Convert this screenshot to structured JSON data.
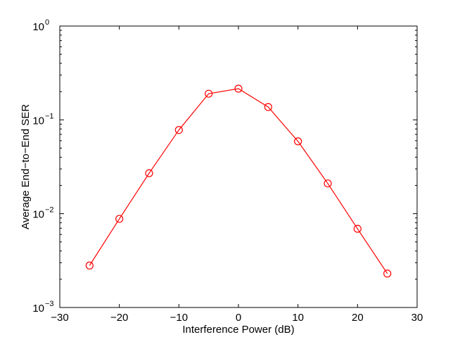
{
  "chart_data": {
    "type": "line",
    "title": "",
    "xlabel": "Interference Power (dB)",
    "ylabel": "Average End−to−End SER",
    "xlim": [
      -30,
      30
    ],
    "ylim": [
      0.001,
      1
    ],
    "yscale": "log",
    "grid": false,
    "legend": "none",
    "x_ticks": [
      {
        "value": -30,
        "label": "−30"
      },
      {
        "value": -20,
        "label": "−20"
      },
      {
        "value": -10,
        "label": "−10"
      },
      {
        "value": 0,
        "label": "0"
      },
      {
        "value": 10,
        "label": "10"
      },
      {
        "value": 20,
        "label": "20"
      },
      {
        "value": 30,
        "label": "30"
      }
    ],
    "y_ticks": [
      {
        "value": 0.001,
        "base": "10",
        "exp": "−3"
      },
      {
        "value": 0.01,
        "base": "10",
        "exp": "−2"
      },
      {
        "value": 0.1,
        "base": "10",
        "exp": "−1"
      },
      {
        "value": 1,
        "base": "10",
        "exp": "0"
      }
    ],
    "series": [
      {
        "color": "#ff0000",
        "marker": "circle",
        "x": [
          -25,
          -20,
          -15,
          -10,
          -5,
          0,
          5,
          10,
          15,
          20,
          25
        ],
        "y": [
          0.0028,
          0.0088,
          0.027,
          0.078,
          0.19,
          0.215,
          0.137,
          0.059,
          0.021,
          0.0069,
          0.0023
        ]
      }
    ]
  }
}
